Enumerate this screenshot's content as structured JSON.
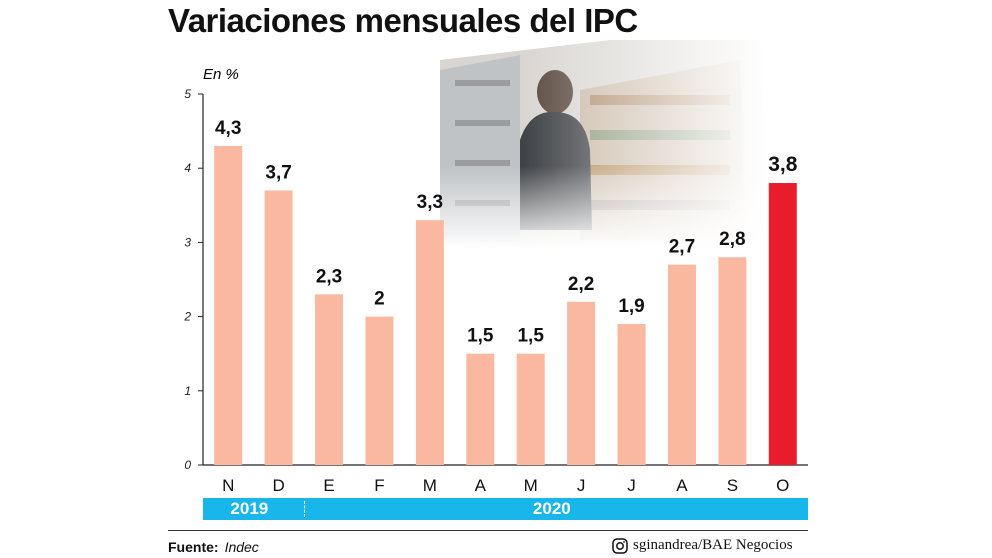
{
  "title": "Variaciones mensuales del IPC",
  "colors": {
    "bar": "#f9b89f",
    "highlight": "#e81c2b",
    "band": "#19b6ec"
  },
  "chart_data": {
    "type": "bar",
    "ylabel": "En %",
    "ylim": [
      0,
      5
    ],
    "yticks": [
      0,
      1,
      2,
      3,
      4,
      5
    ],
    "grid": false,
    "categories": [
      "N",
      "D",
      "E",
      "F",
      "M",
      "A",
      "M",
      "J",
      "J",
      "A",
      "S",
      "O"
    ],
    "values": [
      4.3,
      3.7,
      2.3,
      2,
      3.3,
      1.5,
      1.5,
      2.2,
      1.9,
      2.7,
      2.8,
      3.8
    ],
    "value_labels": [
      "4,3",
      "3,7",
      "2,3",
      "2",
      "3,3",
      "1,5",
      "1,5",
      "2,2",
      "1,9",
      "2,7",
      "2,8",
      "3,8"
    ],
    "highlight_index": 11,
    "year_groups": [
      {
        "label": "2019",
        "categories": [
          "N",
          "D"
        ]
      },
      {
        "label": "2020",
        "categories": [
          "E",
          "F",
          "M",
          "A",
          "M",
          "J",
          "J",
          "A",
          "S",
          "O"
        ]
      }
    ]
  },
  "source": {
    "label": "Fuente:",
    "value": "Indec"
  },
  "credit": {
    "icon": "instagram-icon",
    "text": "sginandrea/BAE Negocios"
  }
}
